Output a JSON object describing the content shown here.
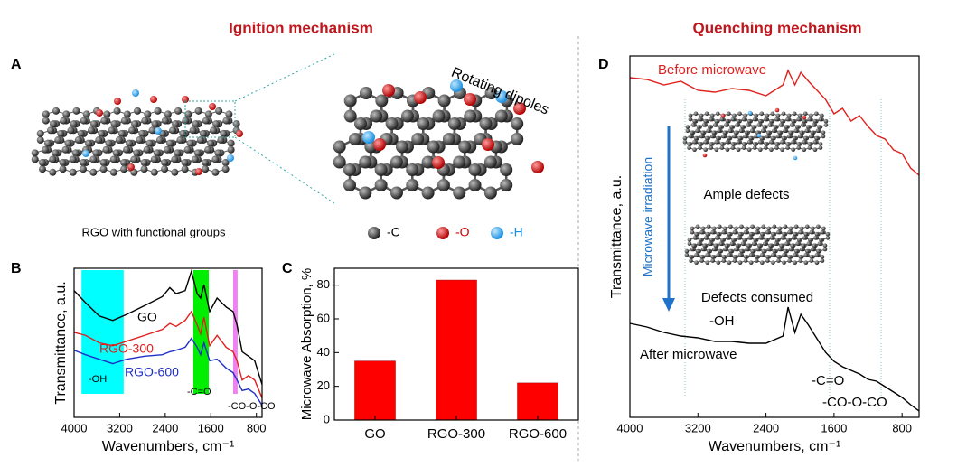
{
  "headings": {
    "ignition": "Ignition mechanism",
    "quenching": "Quenching mechanism"
  },
  "panel_a": {
    "label": "A",
    "caption": "RGO with functional groups",
    "dipoles": "Rotating dipoles",
    "legend": [
      "-C",
      "-O",
      "-H"
    ]
  },
  "chart_data": [
    {
      "label": "B",
      "type": "line",
      "xlabel": "Wavenumbers, cm⁻¹",
      "ylabel": "Transmittance, a.u.",
      "x": [
        4000,
        3800,
        3560,
        3320,
        3080,
        2760,
        2450,
        2320,
        2210,
        2050,
        1940,
        1840,
        1780,
        1720,
        1620,
        1490,
        1330,
        1210,
        1140,
        1050,
        940,
        830,
        700
      ],
      "xlim": [
        4000,
        700
      ],
      "xticks": [
        4000,
        3200,
        2400,
        1600,
        800
      ],
      "ylim": [
        0,
        100
      ],
      "series": [
        {
          "name": "GO",
          "color": "#000000",
          "values": [
            85,
            77,
            68,
            65,
            69,
            75,
            81,
            87,
            83,
            85,
            98,
            83,
            80,
            89,
            71,
            80,
            74,
            71,
            62,
            44,
            41,
            38,
            22
          ]
        },
        {
          "name": "RGO-300",
          "color": "#e0201c",
          "values": [
            57,
            55,
            50,
            48,
            51,
            55,
            59,
            63,
            61,
            65,
            71,
            62,
            56,
            67,
            48,
            55,
            47,
            44,
            38,
            25,
            28,
            25,
            13
          ]
        },
        {
          "name": "RGO-600",
          "color": "#1f2fc8",
          "values": [
            45,
            42,
            39,
            36,
            39,
            41,
            42,
            44,
            45,
            47,
            53,
            47,
            42,
            50,
            38,
            39,
            33,
            30,
            25,
            18,
            19,
            16,
            8
          ]
        }
      ],
      "bands": [
        {
          "from": 3870,
          "to": 3130,
          "color": "#00ffff"
        },
        {
          "from": 1906,
          "to": 1636,
          "color": "#00ee00"
        },
        {
          "from": 1208,
          "to": 1130,
          "color": "#ee82ee"
        }
      ],
      "annotations": [
        "-OH",
        "-C=O",
        "-CO-O-CO"
      ]
    },
    {
      "label": "C",
      "type": "bar",
      "ylabel": "Microwave Absorption, %",
      "categories": [
        "GO",
        "RGO-300",
        "RGO-600"
      ],
      "values": [
        35,
        83,
        22
      ],
      "color": "#ff0000",
      "ylim": [
        0,
        90
      ],
      "yticks": [
        0,
        20,
        40,
        60,
        80
      ]
    },
    {
      "label": "D",
      "type": "line",
      "xlabel": "Wavenumbers, cm⁻¹",
      "ylabel": "Transmittance, a.u.",
      "x": [
        4000,
        3800,
        3600,
        3400,
        3200,
        3000,
        2800,
        2600,
        2400,
        2200,
        2140,
        2060,
        1990,
        1900,
        1700,
        1600,
        1500,
        1400,
        1300,
        1200,
        1100,
        1000,
        900,
        800,
        700,
        600
      ],
      "xlim": [
        4000,
        600
      ],
      "xticks": [
        4000,
        3200,
        2400,
        1600,
        800
      ],
      "ylim": [
        0,
        100
      ],
      "series": [
        {
          "name": "Before microwave",
          "color": "#e0201c",
          "values": [
            94,
            93.5,
            92,
            93,
            90.5,
            90,
            91,
            90.5,
            89,
            92,
            96,
            92,
            95.5,
            93,
            88,
            84,
            85.5,
            82,
            83.5,
            80.5,
            78,
            77,
            74,
            73,
            69,
            67
          ]
        },
        {
          "name": "After microwave",
          "color": "#000000",
          "values": [
            26,
            25,
            23.5,
            22.5,
            22,
            21,
            21,
            20.5,
            20.5,
            22.5,
            30.5,
            23.5,
            28.5,
            25.5,
            18,
            15.5,
            14,
            13,
            12,
            10.5,
            10,
            8.5,
            7,
            5.5,
            3.5,
            1.75
          ]
        }
      ],
      "annotations": [
        "-OH",
        "-C=O",
        "-CO-O-CO",
        "Microwave irradiation",
        "Ample defects",
        "Defects consumed"
      ]
    }
  ]
}
